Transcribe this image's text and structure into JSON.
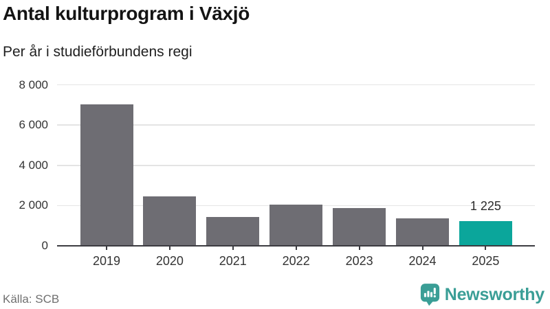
{
  "header": {
    "title": "Antal kulturprogram i Växjö",
    "subtitle": "Per år i studieförbundens regi"
  },
  "footer": {
    "source": "Källa: SCB",
    "brand_name": "Newsworthy"
  },
  "colors": {
    "bar": "#6e6d73",
    "highlight": "#0ba69b",
    "grid": "#e4e4e4",
    "axis": "#3b3b40",
    "brand": "#3a9e96"
  },
  "chart_data": {
    "type": "bar",
    "title": "Antal kulturprogram i Växjö",
    "subtitle": "Per år i studieförbundens regi",
    "categories": [
      "2019",
      "2020",
      "2021",
      "2022",
      "2023",
      "2024",
      "2025"
    ],
    "values": [
      7020,
      2445,
      1445,
      2030,
      1870,
      1370,
      1225
    ],
    "highlighted_category": "2025",
    "highlight_index": 6,
    "data_labels": [
      {
        "category": "2025",
        "text": "1 225",
        "value": 1225
      }
    ],
    "xlabel": "",
    "ylabel": "",
    "ylim": [
      0,
      8000
    ],
    "y_ticks": [
      0,
      2000,
      4000,
      6000,
      8000
    ],
    "y_tick_labels": [
      "0",
      "2 000",
      "4 000",
      "6 000",
      "8 000"
    ],
    "grid": "horizontal",
    "legend": "none",
    "source": "Källa: SCB"
  }
}
